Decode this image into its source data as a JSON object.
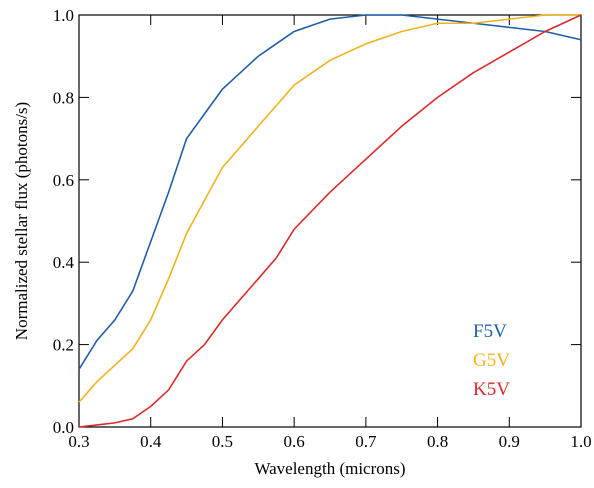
{
  "chart_data": {
    "type": "line",
    "xlabel": "Wavelength (microns)",
    "ylabel": "Normalized stellar flux (photons/s)",
    "x": [
      0.3,
      0.325,
      0.35,
      0.375,
      0.4,
      0.425,
      0.45,
      0.475,
      0.5,
      0.525,
      0.55,
      0.575,
      0.6,
      0.65,
      0.7,
      0.75,
      0.8,
      0.85,
      0.9,
      0.95,
      1.0
    ],
    "series": [
      {
        "name": "F5V",
        "color": "#1f5fa8",
        "values": [
          0.14,
          0.21,
          0.26,
          0.33,
          0.45,
          0.57,
          0.7,
          0.76,
          0.82,
          0.86,
          0.9,
          0.93,
          0.96,
          0.99,
          1.0,
          1.0,
          0.99,
          0.98,
          0.97,
          0.96,
          0.94
        ]
      },
      {
        "name": "G5V",
        "color": "#f0b320",
        "values": [
          0.06,
          0.11,
          0.15,
          0.19,
          0.26,
          0.36,
          0.47,
          0.55,
          0.63,
          0.68,
          0.73,
          0.78,
          0.83,
          0.89,
          0.93,
          0.96,
          0.98,
          0.98,
          0.99,
          1.0,
          1.0
        ]
      },
      {
        "name": "K5V",
        "color": "#dc2a2a",
        "values": [
          0.0,
          0.005,
          0.01,
          0.02,
          0.05,
          0.09,
          0.16,
          0.2,
          0.26,
          0.31,
          0.36,
          0.41,
          0.48,
          0.57,
          0.65,
          0.73,
          0.8,
          0.86,
          0.91,
          0.96,
          1.0
        ]
      }
    ],
    "xlim": [
      0.3,
      1.0
    ],
    "xticks": [
      0.3,
      0.4,
      0.5,
      0.6,
      0.7,
      0.8,
      0.9,
      {
        "value": 1,
        "label": "1.0"
      }
    ],
    "ylim": [
      0,
      1
    ],
    "yticks": [
      {
        "value": 0,
        "label": "0.0"
      },
      0.2,
      0.4,
      0.6,
      0.8,
      {
        "value": 1,
        "label": "1.0"
      }
    ],
    "legend": "lower right"
  }
}
